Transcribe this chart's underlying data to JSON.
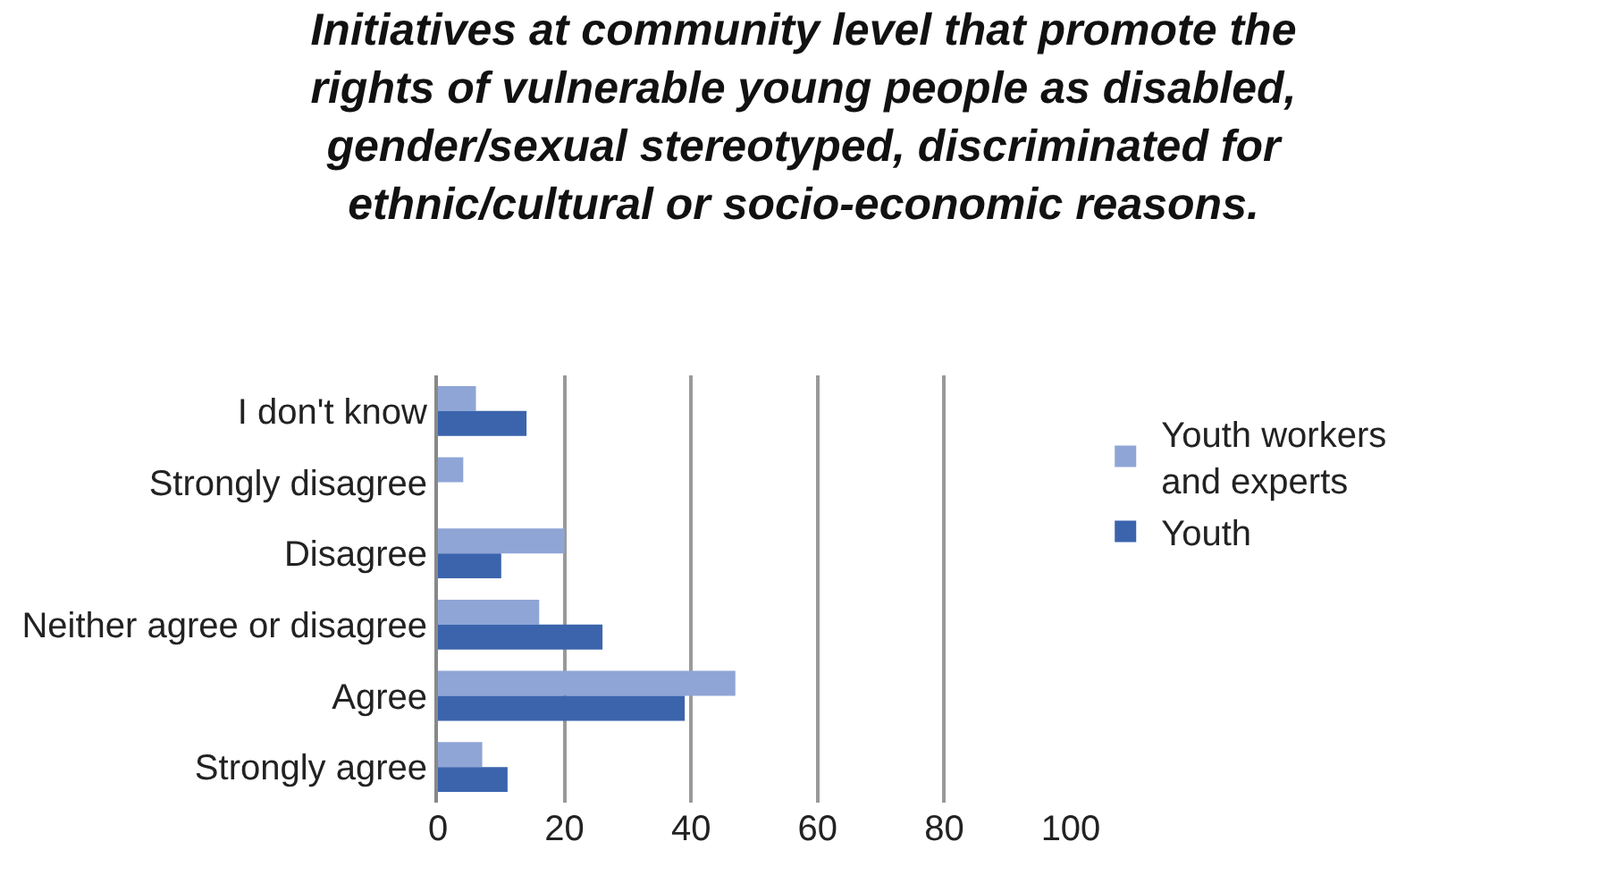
{
  "chart_data": {
    "type": "bar",
    "orientation": "horizontal",
    "title": "Initiatives at community level that promote the rights of vulnerable young people as disabled, gender/sexual stereotyped, discriminated for ethnic/cultural or socio-economic reasons.",
    "categories": [
      "I don't know",
      "Strongly disagree",
      "Disagree",
      "Neither agree or disagree",
      "Agree",
      "Strongly agree"
    ],
    "series": [
      {
        "name": "Youth workers and experts",
        "color": "#8fa5d6",
        "values": [
          6,
          4,
          20,
          16,
          47,
          7
        ]
      },
      {
        "name": "Youth",
        "color": "#3b64ad",
        "values": [
          14,
          0,
          10,
          26,
          39,
          11
        ]
      }
    ],
    "xlim": [
      0,
      100
    ],
    "xticks": [
      0,
      20,
      40,
      60,
      80,
      100
    ],
    "grid": "x",
    "legend": "right"
  }
}
